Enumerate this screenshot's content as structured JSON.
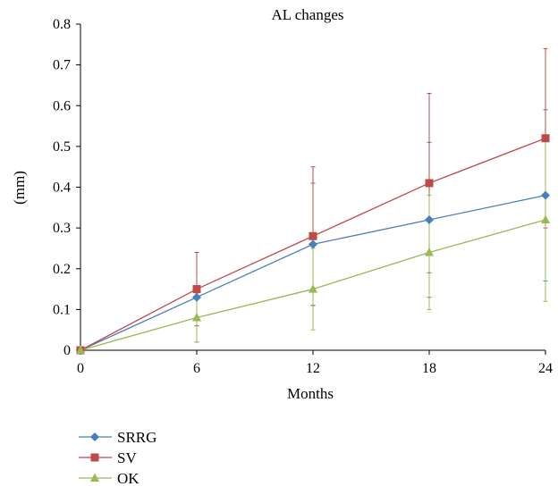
{
  "chart_data": {
    "type": "line",
    "title": "AL changes",
    "xlabel": "Months",
    "ylabel": "(mm)",
    "x": [
      0,
      6,
      12,
      18,
      24
    ],
    "xlim": [
      0,
      24
    ],
    "ylim": [
      0,
      0.8
    ],
    "x_ticks": [
      "0",
      "6",
      "12",
      "18",
      "24"
    ],
    "y_ticks": [
      "0",
      "0.1",
      "0.2",
      "0.3",
      "0.4",
      "0.5",
      "0.6",
      "0.7",
      "0.8"
    ],
    "grid": false,
    "legend_position": "bottom-left",
    "series": [
      {
        "name": "SRRG",
        "color": "#4a7ebb",
        "marker": "diamond",
        "values": [
          0,
          0.13,
          0.26,
          0.32,
          0.38
        ],
        "error": [
          0,
          0.11,
          0.15,
          0.19,
          0.21
        ]
      },
      {
        "name": "SV",
        "color": "#be4b48",
        "marker": "square",
        "values": [
          0,
          0.15,
          0.28,
          0.41,
          0.52
        ],
        "error": [
          0,
          0.09,
          0.17,
          0.22,
          0.22
        ]
      },
      {
        "name": "OK",
        "color": "#98b954",
        "marker": "triangle",
        "values": [
          0,
          0.08,
          0.15,
          0.24,
          0.32
        ],
        "error": [
          0,
          0.06,
          0.1,
          0.14,
          0.2
        ]
      }
    ]
  }
}
